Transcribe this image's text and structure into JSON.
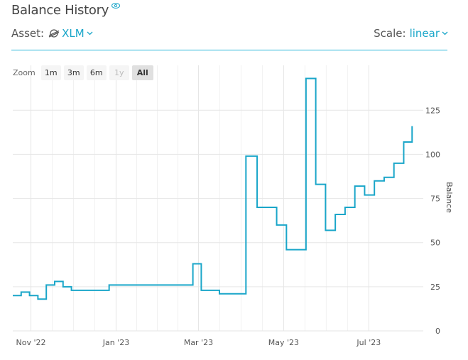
{
  "header": {
    "title": "Balance History",
    "asset_label": "Asset:",
    "asset_value": "XLM",
    "scale_label": "Scale:",
    "scale_value": "linear"
  },
  "zoom": {
    "label": "Zoom",
    "buttons": [
      {
        "label": "1m",
        "state": "normal"
      },
      {
        "label": "3m",
        "state": "normal"
      },
      {
        "label": "6m",
        "state": "normal"
      },
      {
        "label": "1y",
        "state": "disabled"
      },
      {
        "label": "All",
        "state": "active"
      }
    ]
  },
  "colors": {
    "line": "#1aa6c9",
    "accent": "#1aa6c9",
    "grid": "#e6e6e6"
  },
  "chart_data": {
    "type": "line",
    "step": true,
    "ylabel": "Balance",
    "ylim": [
      0,
      140
    ],
    "yticks": [
      0,
      25,
      50,
      75,
      100,
      125
    ],
    "xlim": [
      "2022-10-19",
      "2023-08-09"
    ],
    "xticks": [
      {
        "label": "Nov '22",
        "date": "2022-11-01"
      },
      {
        "label": "Jan '23",
        "date": "2023-01-01"
      },
      {
        "label": "Mar '23",
        "date": "2023-03-01"
      },
      {
        "label": "May '23",
        "date": "2023-05-01"
      },
      {
        "label": "Jul '23",
        "date": "2023-07-01"
      }
    ],
    "grid": true,
    "series": [
      {
        "points": [
          [
            "2022-10-19",
            20
          ],
          [
            "2022-10-25",
            22
          ],
          [
            "2022-10-31",
            20
          ],
          [
            "2022-11-06",
            18
          ],
          [
            "2022-11-12",
            26
          ],
          [
            "2022-11-18",
            28
          ],
          [
            "2022-11-24",
            25
          ],
          [
            "2022-11-30",
            23
          ],
          [
            "2022-12-27",
            26
          ],
          [
            "2023-02-25",
            38
          ],
          [
            "2023-03-03",
            23
          ],
          [
            "2023-03-16",
            21
          ],
          [
            "2023-04-04",
            99
          ],
          [
            "2023-04-12",
            70
          ],
          [
            "2023-04-26",
            60
          ],
          [
            "2023-05-03",
            46
          ],
          [
            "2023-05-17",
            143
          ],
          [
            "2023-05-24",
            83
          ],
          [
            "2023-05-31",
            57
          ],
          [
            "2023-06-07",
            66
          ],
          [
            "2023-06-14",
            70
          ],
          [
            "2023-06-21",
            82
          ],
          [
            "2023-06-28",
            77
          ],
          [
            "2023-07-05",
            85
          ],
          [
            "2023-07-12",
            87
          ],
          [
            "2023-07-19",
            95
          ],
          [
            "2023-07-26",
            107
          ],
          [
            "2023-08-01",
            116
          ]
        ]
      }
    ]
  }
}
